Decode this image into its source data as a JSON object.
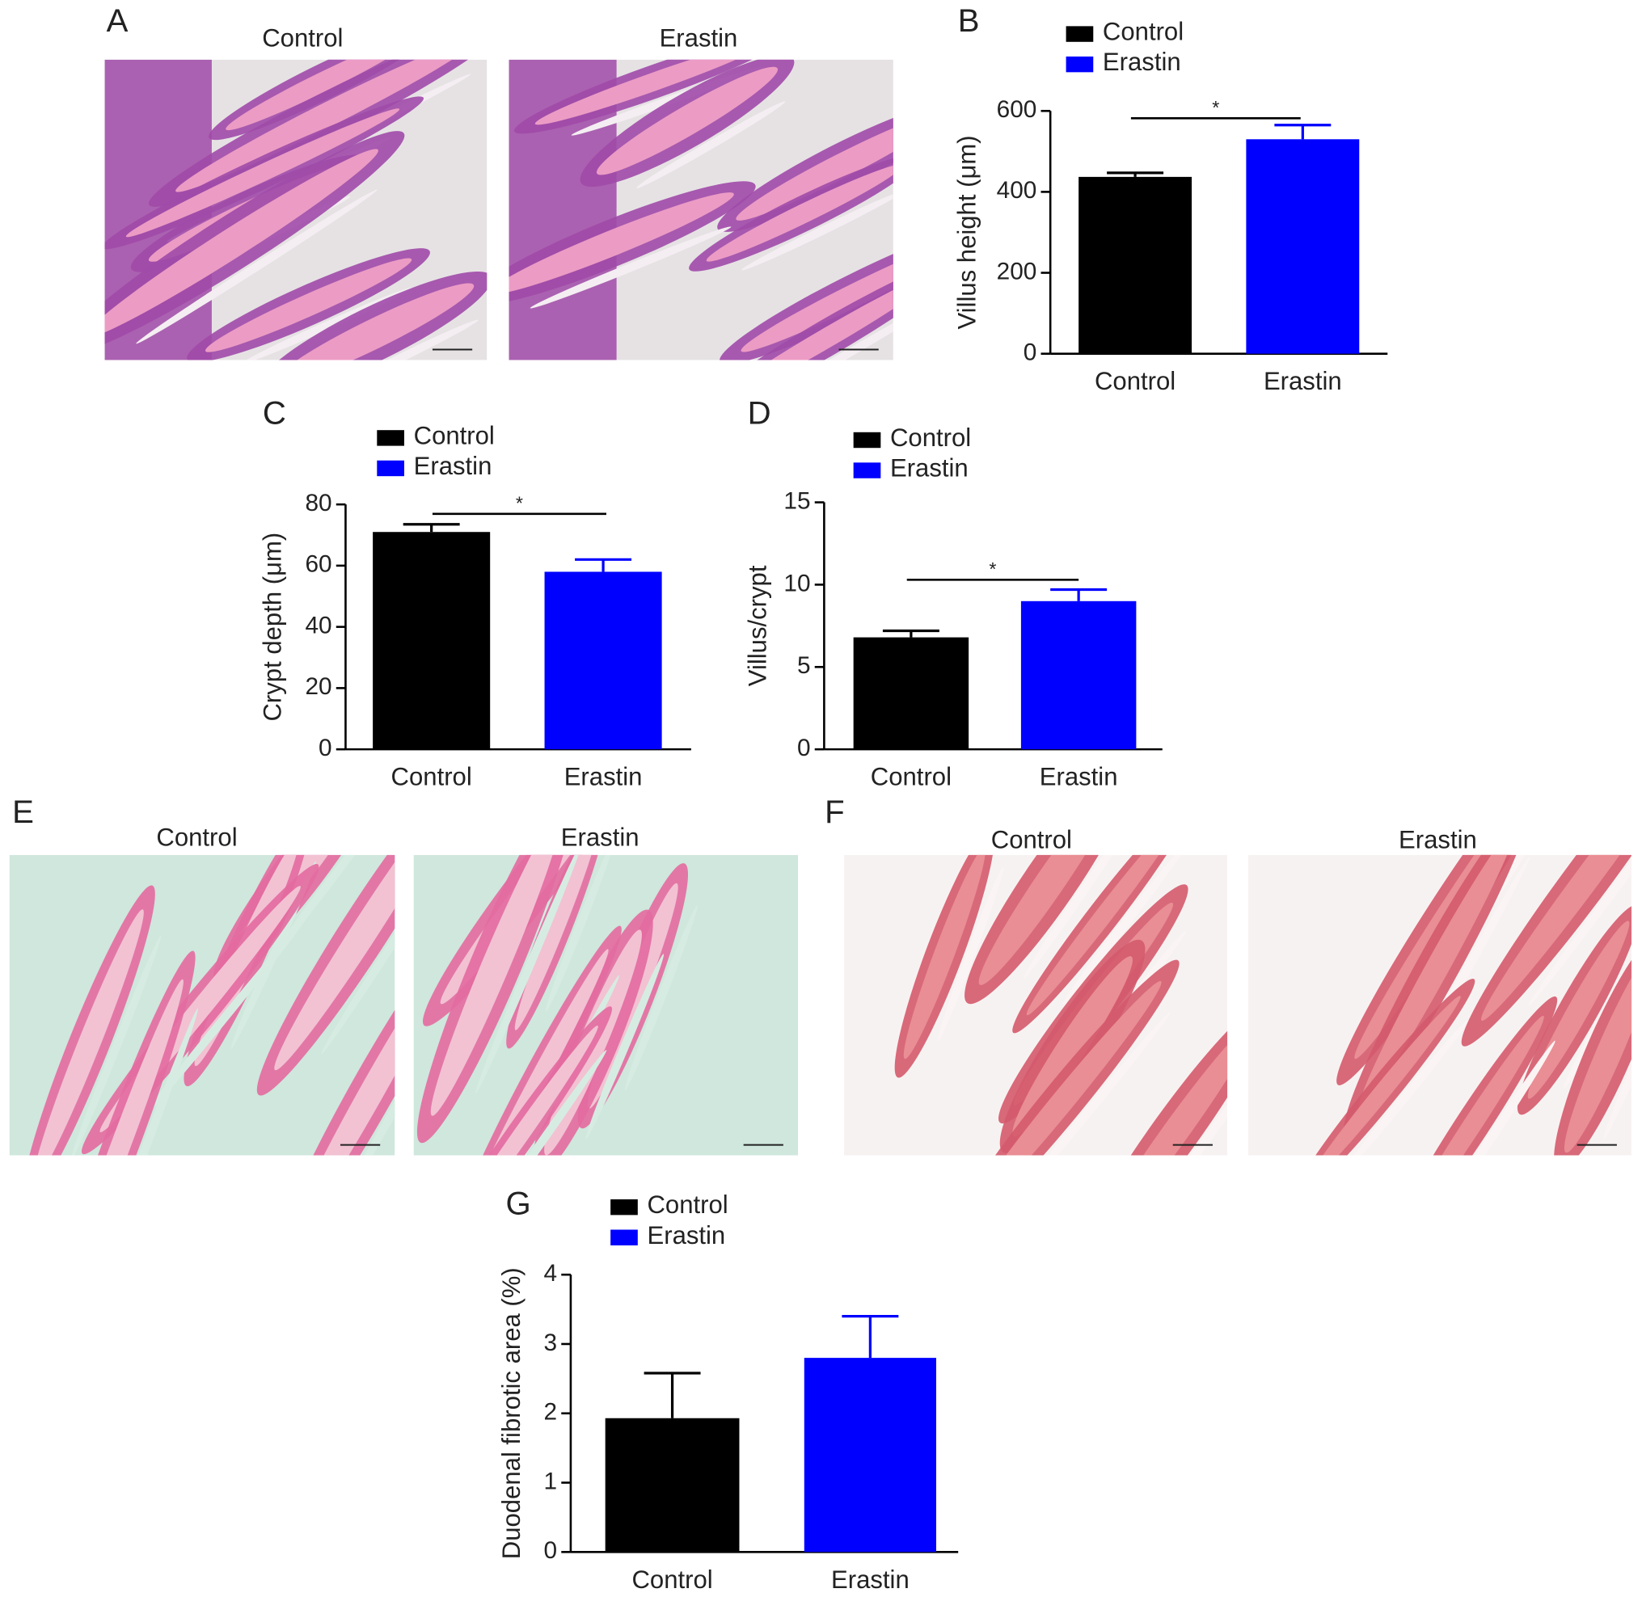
{
  "images": [
    {
      "letter": "A",
      "captions": [
        "Control",
        "Erastin"
      ]
    },
    {
      "letter": "E",
      "captions": [
        "Control",
        "Erastin"
      ]
    },
    {
      "letter": "F",
      "captions": [
        "Control",
        "Erastin"
      ]
    }
  ],
  "chart_data": [
    {
      "type": "bar",
      "panel": "B",
      "ylabel": "Villus height (μm)",
      "categories": [
        "Control",
        "Erastin"
      ],
      "values": [
        437,
        530
      ],
      "errors": [
        10,
        35
      ],
      "colors": [
        "#000000",
        "#0000ff"
      ],
      "ylim": [
        0,
        600
      ],
      "yticks": [
        0,
        200,
        400,
        600
      ],
      "annotation": "*",
      "legend": true
    },
    {
      "type": "bar",
      "panel": "C",
      "ylabel": "Crypt depth (μm)",
      "categories": [
        "Control",
        "Erastin"
      ],
      "values": [
        71,
        58
      ],
      "errors": [
        2.5,
        4
      ],
      "colors": [
        "#000000",
        "#0000ff"
      ],
      "ylim": [
        0,
        80
      ],
      "yticks": [
        0,
        20,
        40,
        60,
        80
      ],
      "annotation": "*",
      "legend": true
    },
    {
      "type": "bar",
      "panel": "D",
      "ylabel": "Villus/crypt",
      "categories": [
        "Control",
        "Erastin"
      ],
      "values": [
        6.8,
        9.0
      ],
      "errors": [
        0.4,
        0.7
      ],
      "colors": [
        "#000000",
        "#0000ff"
      ],
      "ylim": [
        0,
        15
      ],
      "yticks": [
        0,
        5,
        10,
        15
      ],
      "annotation": "*",
      "legend": true
    },
    {
      "type": "bar",
      "panel": "G",
      "ylabel": "Duodenal fibrotic area (%)",
      "categories": [
        "Control",
        "Erastin"
      ],
      "values": [
        1.93,
        2.8
      ],
      "errors": [
        0.65,
        0.6
      ],
      "colors": [
        "#000000",
        "#0000ff"
      ],
      "ylim": [
        0,
        4
      ],
      "yticks": [
        0,
        1,
        2,
        3,
        4
      ],
      "legend": true
    }
  ]
}
